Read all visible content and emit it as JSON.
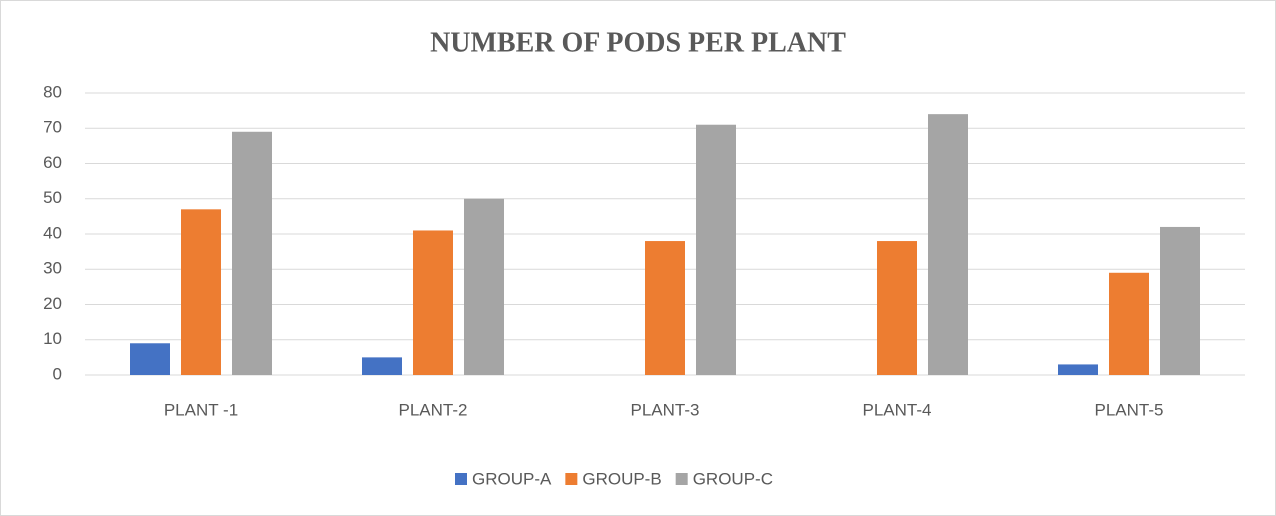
{
  "chart_data": {
    "type": "bar",
    "title": "NUMBER OF PODS PER PLANT",
    "categories": [
      "PLANT -1",
      "PLANT-2",
      "PLANT-3",
      "PLANT-4",
      "PLANT-5"
    ],
    "series": [
      {
        "name": "GROUP-A",
        "color": "#4472c4",
        "values": [
          9,
          5,
          0,
          0,
          3
        ]
      },
      {
        "name": "GROUP-B",
        "color": "#ed7d31",
        "values": [
          47,
          41,
          38,
          38,
          29
        ]
      },
      {
        "name": "GROUP-C",
        "color": "#a5a5a5",
        "values": [
          69,
          50,
          71,
          74,
          42
        ]
      }
    ],
    "ylim": [
      0,
      80
    ],
    "yticks": [
      0,
      10,
      20,
      30,
      40,
      50,
      60,
      70,
      80
    ],
    "grid": true,
    "legend": "bottom"
  }
}
